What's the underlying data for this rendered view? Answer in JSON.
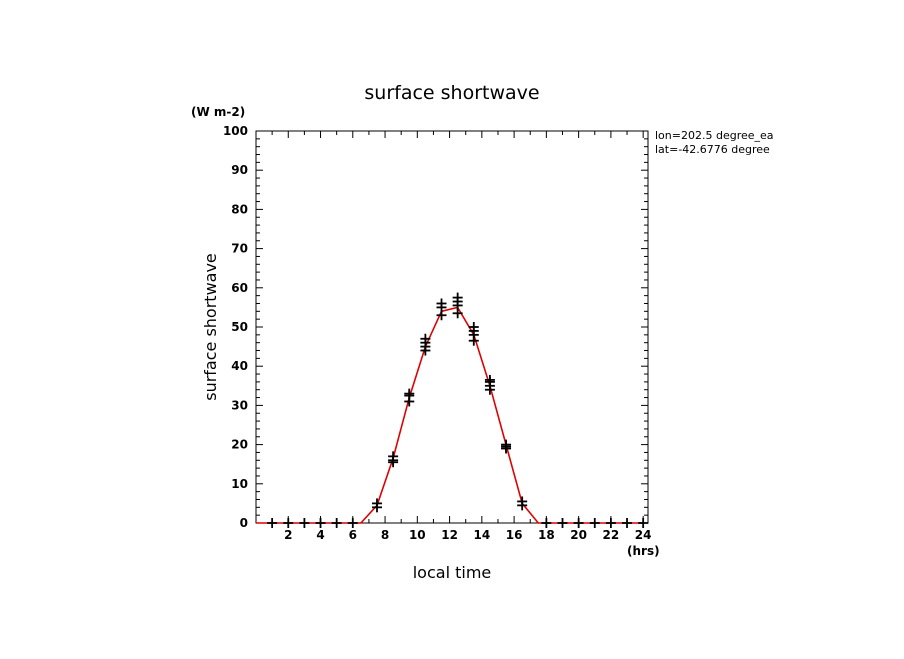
{
  "chart_data": {
    "type": "line",
    "title": "surface shortwave",
    "xlabel": "local time",
    "ylabel": "surface shortwave",
    "x_unit": "(hrs)",
    "y_unit": "(W m-2)",
    "info_lines": [
      "lon=202.5 degree_ea",
      "lat=-42.6776 degree"
    ],
    "xlim": [
      0,
      24.3
    ],
    "ylim": [
      0,
      100
    ],
    "x_ticks": [
      2,
      4,
      6,
      8,
      10,
      12,
      14,
      16,
      18,
      20,
      22,
      24
    ],
    "y_ticks": [
      0,
      10,
      20,
      30,
      40,
      50,
      60,
      70,
      80,
      90,
      100
    ],
    "line_color": "#e00000",
    "marker_color": "#000000",
    "line": {
      "x": [
        0,
        1,
        2,
        3,
        4,
        5,
        6,
        6.5,
        7.5,
        8.5,
        9.5,
        10.5,
        11.5,
        12.5,
        13.5,
        14.5,
        15.5,
        16.5,
        17.5,
        18,
        19,
        20,
        21,
        22,
        23,
        24
      ],
      "y": [
        0,
        0,
        0,
        0,
        0,
        0,
        0,
        0,
        4.5,
        16.5,
        32,
        45,
        54,
        55,
        48,
        35,
        20,
        5,
        0,
        0,
        0,
        0,
        0,
        0,
        0,
        0
      ]
    },
    "markers": {
      "x": [
        1,
        2,
        3,
        4,
        5,
        6,
        7.5,
        7.5,
        8.5,
        8.5,
        8.5,
        9.5,
        9.5,
        9.5,
        10.5,
        10.5,
        10.5,
        10.5,
        11.5,
        11.5,
        11.5,
        12.5,
        12.5,
        12.5,
        12.5,
        13.5,
        13.5,
        13.5,
        13.5,
        14.5,
        14.5,
        14.5,
        14.5,
        15.5,
        15.5,
        15.5,
        16.5,
        16.5,
        18,
        19,
        20,
        21,
        22,
        23,
        24
      ],
      "y": [
        0,
        0,
        0,
        0,
        0,
        0,
        4,
        5,
        16,
        17,
        15.5,
        31,
        32.5,
        33,
        44,
        46,
        47,
        45,
        53,
        55,
        56,
        53.5,
        55.5,
        56.5,
        57.5,
        46.5,
        48,
        49,
        50,
        34,
        35,
        36,
        36.5,
        19,
        20,
        19.5,
        4.5,
        5.5,
        0,
        0,
        0,
        0,
        0,
        0,
        0
      ]
    }
  }
}
